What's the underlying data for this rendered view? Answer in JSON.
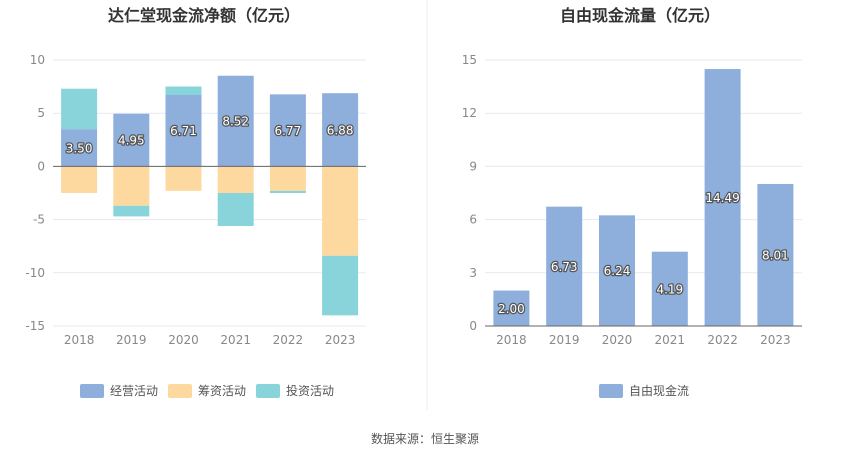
{
  "source_text": "数据来源：恒生聚源",
  "colors": {
    "operating": "#8eaedc",
    "financing": "#fdd9a0",
    "investing": "#88d4da",
    "free_cash_flow": "#8eaedc",
    "axis_text": "#888888",
    "grid": "#e6e9f2",
    "zero_line": "#666666",
    "title": "#333333"
  },
  "chart_data": [
    {
      "type": "bar",
      "stacked": true,
      "title": "达仁堂现金流净额（亿元）",
      "categories": [
        "2018",
        "2019",
        "2020",
        "2021",
        "2022",
        "2023"
      ],
      "ylim": [
        -15,
        10
      ],
      "yticks": [
        "10",
        "5",
        "0",
        "-5",
        "-10",
        "-15"
      ],
      "yticks_values": [
        10,
        5,
        0,
        -5,
        -10,
        -15
      ],
      "grid": true,
      "legend_position": "bottom",
      "series": [
        {
          "name": "经营活动",
          "values": [
            3.5,
            4.95,
            6.71,
            8.52,
            6.77,
            6.88
          ],
          "labels": [
            "3.50",
            "4.95",
            "6.71",
            "8.52",
            "6.77",
            "6.88"
          ]
        },
        {
          "name": "筹资活动",
          "values": [
            -2.5,
            -3.7,
            -2.3,
            -2.5,
            -2.3,
            -8.4
          ]
        },
        {
          "name": "投资活动",
          "values": [
            3.8,
            -1.0,
            0.8,
            -3.1,
            -0.2,
            -5.6
          ]
        }
      ]
    },
    {
      "type": "bar",
      "title": "自由现金流量（亿元）",
      "categories": [
        "2018",
        "2019",
        "2020",
        "2021",
        "2022",
        "2023"
      ],
      "ylim": [
        0,
        15
      ],
      "yticks": [
        "15",
        "12",
        "9",
        "6",
        "3",
        "0"
      ],
      "yticks_values": [
        15,
        12,
        9,
        6,
        3,
        0
      ],
      "grid": true,
      "legend_position": "bottom",
      "series": [
        {
          "name": "自由现金流",
          "values": [
            2.0,
            6.73,
            6.24,
            4.19,
            14.49,
            8.01
          ],
          "labels": [
            "2.00",
            "6.73",
            "6.24",
            "4.19",
            "14.49",
            "8.01"
          ]
        }
      ]
    }
  ]
}
